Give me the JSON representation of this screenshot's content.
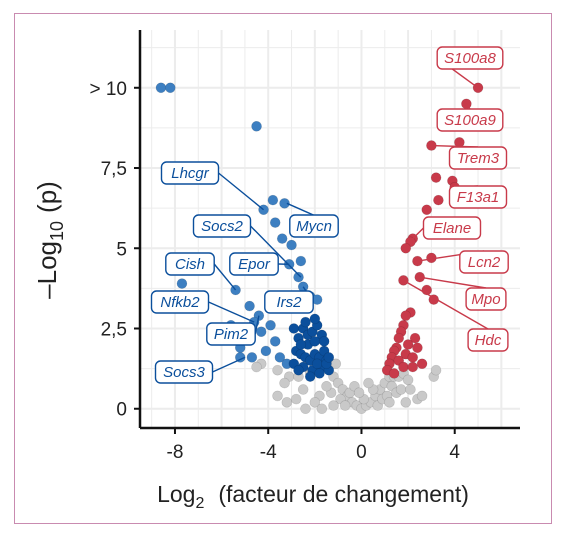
{
  "chart_data": {
    "type": "scatter",
    "title": "",
    "xlabel": {
      "base": "Log",
      "sub": "2",
      "rest": "(facteur de changement)"
    },
    "ylabel": {
      "prefix": "–Log",
      "sub": "10",
      "rest": "(p)"
    },
    "xlim": [
      -9.5,
      6.8
    ],
    "ylim": [
      -0.6,
      11.8
    ],
    "x_ticks": [
      {
        "value": -8,
        "label": "-8"
      },
      {
        "value": -4,
        "label": "-4"
      },
      {
        "value": 0,
        "label": "0"
      },
      {
        "value": 4,
        "label": "4"
      }
    ],
    "y_ticks": [
      {
        "value": 0,
        "label": "0"
      },
      {
        "value": 2.5,
        "label": "2,5"
      },
      {
        "value": 5,
        "label": "5"
      },
      {
        "value": 7.5,
        "label": "7,5"
      },
      {
        "value": 10,
        "label": "> 10"
      }
    ],
    "grid": true,
    "colors": {
      "down": "#3d7fc1",
      "down_dense": "#0b4f9c",
      "up": "#c83a4a",
      "ns": "#c9c9c9",
      "frame": "#c98bb0"
    },
    "series": [
      {
        "group": "down",
        "points": [
          [
            -8.6,
            10
          ],
          [
            -8.2,
            10
          ],
          [
            -4.5,
            8.8
          ],
          [
            -4.2,
            6.2
          ],
          [
            -3.8,
            6.5
          ],
          [
            -3.3,
            6.4
          ],
          [
            -3.7,
            5.8
          ],
          [
            -3.4,
            5.3
          ],
          [
            -3.0,
            5.1
          ],
          [
            -3.8,
            4.7
          ],
          [
            -3.1,
            4.5
          ],
          [
            -2.6,
            4.6
          ],
          [
            -2.7,
            4.1
          ],
          [
            -2.5,
            3.8
          ],
          [
            -2.2,
            3.5
          ],
          [
            -1.9,
            3.4
          ],
          [
            -7.7,
            3.9
          ],
          [
            -5.4,
            3.7
          ],
          [
            -4.8,
            3.2
          ],
          [
            -4.4,
            2.9
          ],
          [
            -4.6,
            2.7
          ],
          [
            -4.3,
            2.4
          ],
          [
            -5.6,
            2.6
          ],
          [
            -5.8,
            2.2
          ],
          [
            -5.2,
            1.9
          ],
          [
            -4.7,
            1.6
          ],
          [
            -4.1,
            1.8
          ],
          [
            -3.7,
            2.1
          ],
          [
            -3.5,
            1.6
          ],
          [
            -3.9,
            2.6
          ],
          [
            -5.2,
            1.6
          ],
          [
            -3.2,
            1.4
          ]
        ]
      },
      {
        "group": "down_dense",
        "points": [
          [
            -2.9,
            2.5
          ],
          [
            -2.7,
            2.2
          ],
          [
            -2.5,
            2.5
          ],
          [
            -2.3,
            2.3
          ],
          [
            -2.1,
            2.4
          ],
          [
            -1.9,
            2.6
          ],
          [
            -1.7,
            2.3
          ],
          [
            -2.8,
            1.8
          ],
          [
            -2.6,
            1.7
          ],
          [
            -2.4,
            1.6
          ],
          [
            -2.2,
            1.5
          ],
          [
            -2.0,
            1.7
          ],
          [
            -1.8,
            1.6
          ],
          [
            -1.6,
            1.8
          ],
          [
            -1.5,
            1.5
          ],
          [
            -2.9,
            1.4
          ],
          [
            -2.5,
            1.3
          ],
          [
            -2.1,
            1.2
          ],
          [
            -1.7,
            1.3
          ],
          [
            -1.4,
            1.2
          ],
          [
            -2.3,
            2.0
          ],
          [
            -2.0,
            2.1
          ],
          [
            -1.6,
            2.1
          ],
          [
            -2.6,
            2.0
          ],
          [
            -1.9,
            1.4
          ],
          [
            -2.7,
            1.2
          ],
          [
            -1.5,
            1.4
          ],
          [
            -2.2,
            1.0
          ],
          [
            -1.8,
            1.1
          ],
          [
            -2.4,
            2.7
          ],
          [
            -2.0,
            2.8
          ],
          [
            -1.4,
            1.6
          ]
        ]
      },
      {
        "group": "up",
        "points": [
          [
            5.0,
            10.0
          ],
          [
            4.5,
            9.5
          ],
          [
            4.2,
            8.3
          ],
          [
            3.0,
            8.2
          ],
          [
            3.2,
            7.2
          ],
          [
            3.9,
            7.1
          ],
          [
            4.0,
            6.9
          ],
          [
            3.3,
            6.5
          ],
          [
            2.8,
            6.2
          ],
          [
            2.2,
            5.3
          ],
          [
            2.1,
            5.2
          ],
          [
            1.9,
            5.0
          ],
          [
            2.4,
            4.6
          ],
          [
            3.0,
            4.7
          ],
          [
            2.5,
            4.1
          ],
          [
            2.8,
            3.7
          ],
          [
            1.8,
            4.0
          ],
          [
            3.1,
            3.4
          ],
          [
            2.1,
            3.0
          ],
          [
            1.9,
            2.9
          ],
          [
            1.8,
            2.6
          ],
          [
            1.7,
            2.4
          ],
          [
            2.3,
            2.2
          ],
          [
            1.6,
            2.2
          ],
          [
            2.0,
            2.0
          ],
          [
            1.5,
            1.9
          ],
          [
            2.4,
            1.9
          ],
          [
            1.4,
            1.8
          ],
          [
            1.9,
            1.7
          ],
          [
            1.3,
            1.6
          ],
          [
            2.2,
            1.6
          ],
          [
            1.6,
            1.5
          ],
          [
            2.6,
            1.4
          ],
          [
            1.2,
            1.4
          ],
          [
            1.8,
            1.3
          ],
          [
            1.1,
            1.2
          ],
          [
            1.4,
            1.1
          ],
          [
            2.2,
            1.3
          ]
        ]
      },
      {
        "group": "ns",
        "points": [
          [
            -4.3,
            1.4
          ],
          [
            -4.5,
            1.3
          ],
          [
            -3.6,
            1.2
          ],
          [
            -3.1,
            1.0
          ],
          [
            -2.5,
            0.6
          ],
          [
            -1.2,
            1.0
          ],
          [
            -1.0,
            0.8
          ],
          [
            -0.8,
            0.6
          ],
          [
            -0.6,
            0.4
          ],
          [
            -0.4,
            0.2
          ],
          [
            -0.2,
            0.1
          ],
          [
            0.0,
            0.0
          ],
          [
            0.2,
            0.1
          ],
          [
            0.4,
            0.2
          ],
          [
            0.6,
            0.4
          ],
          [
            0.8,
            0.6
          ],
          [
            1.0,
            0.8
          ],
          [
            1.2,
            1.0
          ],
          [
            1.4,
            1.0
          ],
          [
            1.6,
            1.0
          ],
          [
            1.8,
            1.1
          ],
          [
            2.0,
            0.9
          ],
          [
            2.4,
            0.3
          ],
          [
            3.1,
            1.0
          ],
          [
            3.2,
            1.2
          ],
          [
            -1.4,
            1.3
          ],
          [
            -1.1,
            1.4
          ],
          [
            -1.3,
            0.5
          ],
          [
            -0.9,
            0.3
          ],
          [
            -0.7,
            0.1
          ],
          [
            0.7,
            0.1
          ],
          [
            0.9,
            0.3
          ],
          [
            1.1,
            0.4
          ],
          [
            1.3,
            0.7
          ],
          [
            0.5,
            0.6
          ],
          [
            -0.5,
            0.5
          ],
          [
            0.3,
            0.8
          ],
          [
            -0.3,
            0.7
          ],
          [
            1.5,
            0.5
          ],
          [
            -1.5,
            0.7
          ],
          [
            1.7,
            0.6
          ],
          [
            -1.8,
            0.4
          ],
          [
            1.9,
            0.2
          ],
          [
            -2.0,
            0.2
          ],
          [
            -2.2,
            1.1
          ],
          [
            -2.7,
            1.0
          ],
          [
            -3.3,
            0.8
          ],
          [
            -3.6,
            0.4
          ],
          [
            -3.2,
            0.2
          ],
          [
            -2.8,
            0.3
          ],
          [
            -2.4,
            0.0
          ],
          [
            -1.7,
            0.0
          ],
          [
            -1.2,
            0.1
          ],
          [
            1.2,
            0.2
          ],
          [
            0.1,
            0.3
          ],
          [
            -0.1,
            0.5
          ],
          [
            2.1,
            0.6
          ],
          [
            2.6,
            0.4
          ]
        ]
      }
    ],
    "labels": [
      {
        "gene": "Lhcgr",
        "group": "down",
        "point": [
          -4.2,
          6.2
        ]
      },
      {
        "gene": "Socs2",
        "group": "down",
        "point": [
          -2.6,
          4.1
        ]
      },
      {
        "gene": "Mycn",
        "group": "down",
        "point": [
          -3.2,
          6.4
        ]
      },
      {
        "gene": "Epor",
        "group": "down",
        "point": [
          -3.1,
          4.5
        ]
      },
      {
        "gene": "Cish",
        "group": "down",
        "point": [
          -5.4,
          3.7
        ]
      },
      {
        "gene": "Irs2",
        "group": "down",
        "point": [
          -2.5,
          3.8
        ]
      },
      {
        "gene": "Nfkb2",
        "group": "down",
        "point": [
          -4.6,
          2.7
        ]
      },
      {
        "gene": "Pim2",
        "group": "down",
        "point": [
          -4.4,
          2.9
        ]
      },
      {
        "gene": "Socs3",
        "group": "down",
        "point": [
          -5.0,
          1.6
        ]
      },
      {
        "gene": "S100a8",
        "group": "up",
        "point": [
          5.0,
          10.0
        ]
      },
      {
        "gene": "S100a9",
        "group": "up",
        "point": [
          4.5,
          9.5
        ]
      },
      {
        "gene": "Trem3",
        "group": "up",
        "point": [
          3.0,
          8.2
        ]
      },
      {
        "gene": "F13a1",
        "group": "up",
        "point": [
          4.0,
          6.9
        ]
      },
      {
        "gene": "Elane",
        "group": "up",
        "point": [
          2.2,
          5.3
        ]
      },
      {
        "gene": "Lcn2",
        "group": "up",
        "point": [
          2.4,
          4.6
        ]
      },
      {
        "gene": "Mpo",
        "group": "up",
        "point": [
          2.5,
          4.1
        ]
      },
      {
        "gene": "Hdc",
        "group": "up",
        "point": [
          1.8,
          4.0
        ]
      }
    ]
  }
}
